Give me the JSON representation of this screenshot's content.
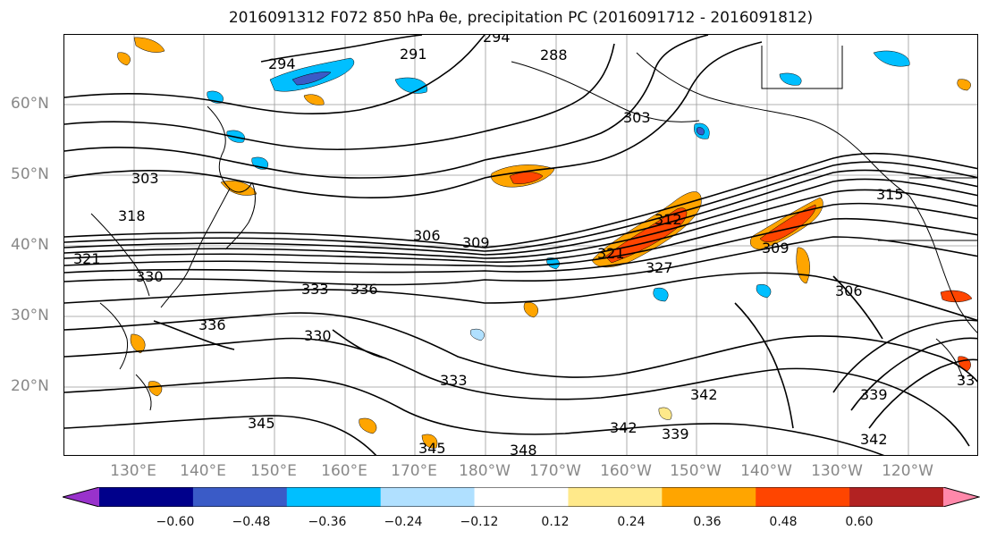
{
  "title": "2016091312 F072 850 hPa θe, precipitation PC (2016091712 - 2016091812)",
  "latitude_labels": [
    "60°N",
    "50°N",
    "40°N",
    "30°N",
    "20°N"
  ],
  "longitude_labels": [
    "130°E",
    "140°E",
    "150°E",
    "160°E",
    "170°E",
    "180°W",
    "170°W",
    "160°W",
    "150°W",
    "140°W",
    "130°W",
    "120°W"
  ],
  "contour_labels": [
    "294",
    "291",
    "288",
    "294",
    "303",
    "303",
    "318",
    "321",
    "330",
    "306",
    "309",
    "312",
    "321",
    "327",
    "309",
    "315",
    "333",
    "336",
    "330",
    "333",
    "336",
    "342",
    "339",
    "342",
    "345",
    "345",
    "348",
    "306",
    "339",
    "342",
    "33"
  ],
  "colorbar": {
    "ticks": [
      "−0.60",
      "−0.48",
      "−0.36",
      "−0.24",
      "−0.12",
      "0.12",
      "0.24",
      "0.36",
      "0.48",
      "0.60"
    ],
    "colors": [
      "#9932CC",
      "#00008B",
      "#3A5BC7",
      "#00BFFF",
      "#B0E0FF",
      "#FFFFFF",
      "#FFE98A",
      "#FFA500",
      "#FF4500",
      "#B22222",
      "#FF88AA"
    ]
  },
  "shading_colors": {
    "negative_light": "#B0E0FF",
    "negative": "#00BFFF",
    "negative_strong": "#3A5BC7",
    "positive_light": "#FFE98A",
    "positive": "#FFA500",
    "positive_strong": "#FF4500"
  }
}
